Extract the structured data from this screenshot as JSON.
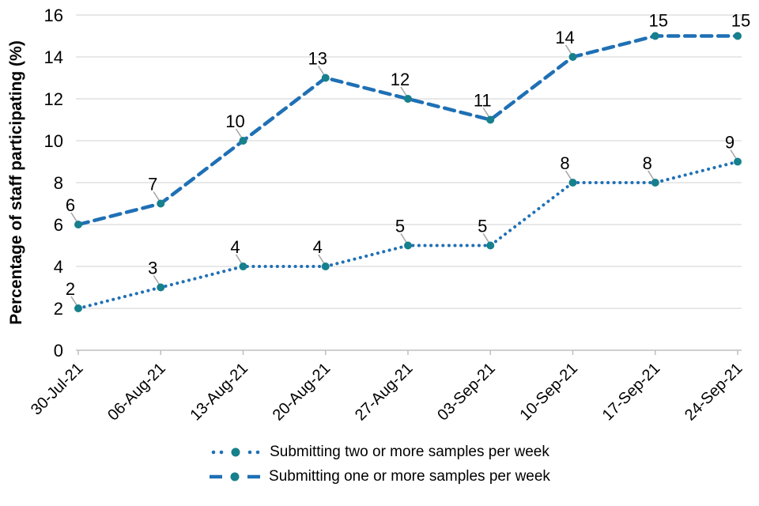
{
  "chart_data": {
    "type": "line",
    "title": "",
    "xlabel": "",
    "ylabel": "Percentage of staff participating (%)",
    "categories": [
      "30-Jul-21",
      "06-Aug-21",
      "13-Aug-21",
      "20-Aug-21",
      "27-Aug-21",
      "03-Sep-21",
      "10-Sep-21",
      "17-Sep-21",
      "24-Sep-21"
    ],
    "series": [
      {
        "name": "Submitting two or more samples per week",
        "line_style": "dotted",
        "values": [
          2,
          3,
          4,
          4,
          5,
          5,
          8,
          8,
          9
        ],
        "data_labels": [
          "2",
          "3",
          "4",
          "4",
          "5",
          "5",
          "8",
          "8",
          "9"
        ],
        "label_leaders": [
          true,
          true,
          true,
          true,
          true,
          true,
          true,
          true,
          true
        ]
      },
      {
        "name": "Submitting one or more samples per week",
        "line_style": "dashed",
        "values": [
          6,
          7,
          10,
          13,
          12,
          11,
          14,
          15,
          15
        ],
        "data_labels": [
          "6",
          "7",
          "10",
          "13",
          "12",
          "11",
          "14",
          "15",
          "15"
        ],
        "label_leaders": [
          true,
          true,
          true,
          true,
          true,
          true,
          true,
          false,
          false
        ]
      }
    ],
    "ylim": [
      0,
      16
    ],
    "ytick_step": 2,
    "yticks": [
      "0",
      "2",
      "4",
      "6",
      "8",
      "10",
      "12",
      "14",
      "16"
    ],
    "grid": "horizontal",
    "legend_position": "bottom",
    "colors": {
      "line": "#1F70B5",
      "marker": "#17808D",
      "gridline": "#D9D9D9",
      "axis_line": "#BFBFBF",
      "leader_line": "#A6A6A6",
      "text": "#000000"
    }
  }
}
